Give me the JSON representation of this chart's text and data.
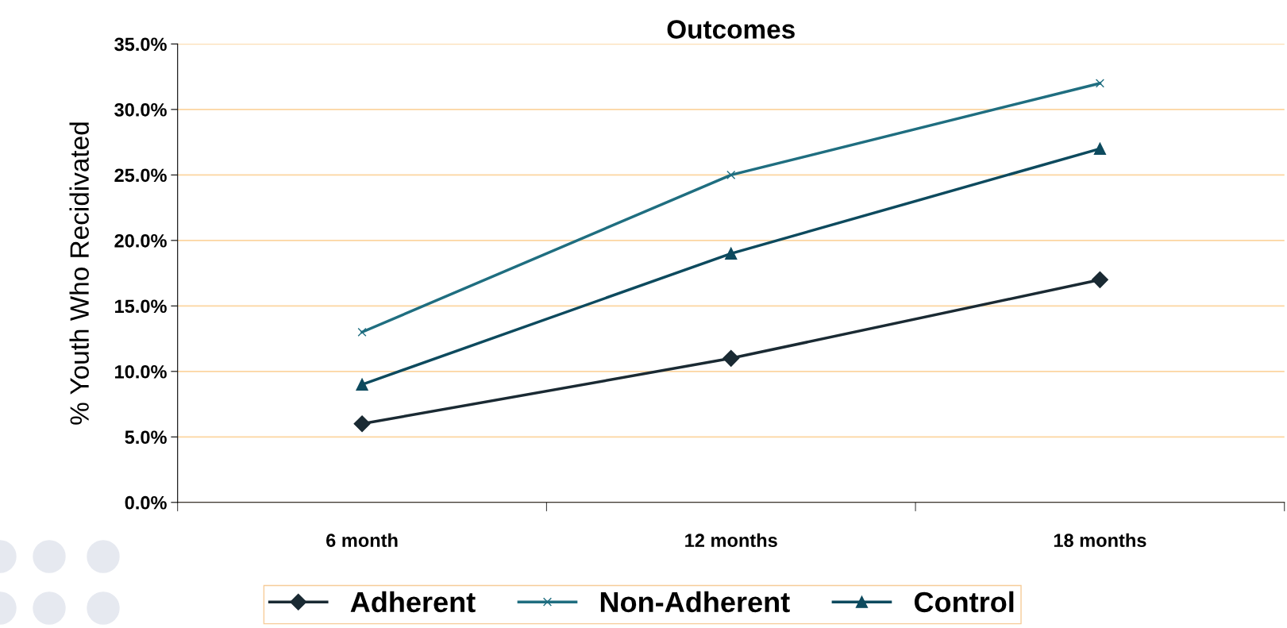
{
  "chart_data": {
    "type": "line",
    "title": "Outcomes",
    "ylabel": "% Youth Who Recidivated",
    "categories": [
      "6 month",
      "12 months",
      "18 months"
    ],
    "series": [
      {
        "name": "Adherent",
        "color": "#1a2a33",
        "marker": "diamond",
        "values": [
          6,
          11,
          17
        ]
      },
      {
        "name": "Non-Adherent",
        "color": "#1f6e80",
        "marker": "cross",
        "values": [
          13,
          25,
          32
        ]
      },
      {
        "name": "Control",
        "color": "#0d4a5e",
        "marker": "triangle",
        "values": [
          9,
          19,
          27
        ]
      }
    ],
    "ylim": [
      0,
      35
    ],
    "yticks": [
      {
        "value": 0,
        "label": "0.0%"
      },
      {
        "value": 5,
        "label": "5.0%"
      },
      {
        "value": 10,
        "label": "10.0%"
      },
      {
        "value": 15,
        "label": "15.0%"
      },
      {
        "value": 20,
        "label": "20.0%"
      },
      {
        "value": 25,
        "label": "25.0%"
      },
      {
        "value": 30,
        "label": "30.0%"
      },
      {
        "value": 35,
        "label": "35.0%"
      }
    ],
    "grid": "y",
    "legend": "bottom"
  }
}
